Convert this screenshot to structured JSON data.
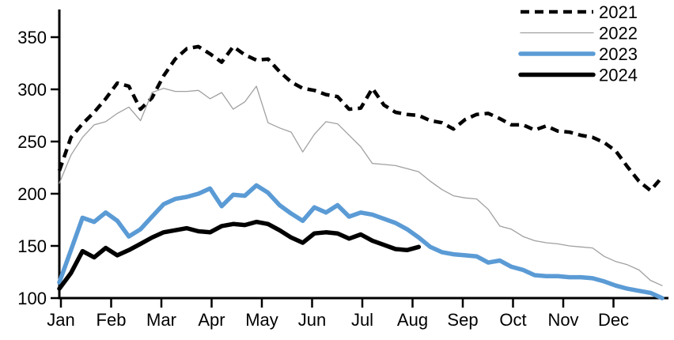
{
  "chart": {
    "legend": {
      "position": "top-right",
      "items": [
        {
          "label": "2021",
          "swatch": "dashed-black-line"
        },
        {
          "label": "2022",
          "swatch": "thin-gray-line"
        },
        {
          "label": "2023",
          "swatch": "thick-blue-line"
        },
        {
          "label": "2024",
          "swatch": "thick-black-line"
        }
      ]
    },
    "colors": {
      "series_2021": "#000000",
      "series_2022": "#a0a0a0",
      "series_2023": "#5b9bd5",
      "series_2024": "#000000",
      "axis": "#000000",
      "background": "#ffffff"
    }
  },
  "chart_data": {
    "type": "line",
    "title": "",
    "xlabel": "",
    "ylabel": "",
    "months": [
      "Jan",
      "Feb",
      "Mar",
      "Apr",
      "May",
      "Jun",
      "Jul",
      "Aug",
      "Sep",
      "Oct",
      "Nov",
      "Dec"
    ],
    "x_unit": "week",
    "weeks_per_year": 52,
    "ylim": [
      100,
      380
    ],
    "yticks": [
      100,
      150,
      200,
      250,
      300,
      350
    ],
    "grid": false,
    "legend_position": "top-right",
    "series": [
      {
        "name": "2021",
        "style": "dashed",
        "color": "#000000",
        "width": 4.5,
        "start_week": 0,
        "values": [
          222,
          254,
          267,
          278,
          291,
          306,
          303,
          281,
          292,
          313,
          329,
          339,
          341,
          334,
          326,
          341,
          333,
          328,
          329,
          317,
          307,
          301,
          299,
          295,
          293,
          281,
          282,
          301,
          285,
          278,
          276,
          275,
          270,
          268,
          262,
          271,
          276,
          277,
          272,
          266,
          266,
          261,
          265,
          260,
          259,
          256,
          254,
          249,
          241,
          226,
          212,
          203,
          216
        ]
      },
      {
        "name": "2022",
        "style": "solid",
        "color": "#a0a0a0",
        "width": 1.3,
        "start_week": 0,
        "values": [
          210,
          237,
          254,
          266,
          269,
          277,
          283,
          270,
          297,
          301,
          298,
          298,
          299,
          291,
          297,
          281,
          288,
          303,
          268,
          263,
          259,
          240,
          257,
          269,
          267,
          256,
          245,
          229,
          228,
          227,
          224,
          221,
          212,
          204,
          198,
          196,
          195,
          185,
          169,
          166,
          159,
          155,
          153,
          152,
          150,
          149,
          148,
          140,
          135,
          132,
          127,
          117,
          112
        ]
      },
      {
        "name": "2023",
        "style": "solid",
        "color": "#5b9bd5",
        "width": 5.5,
        "start_week": 0,
        "values": [
          115,
          146,
          177,
          173,
          182,
          174,
          159,
          166,
          178,
          190,
          195,
          197,
          200,
          205,
          188,
          199,
          198,
          208,
          201,
          189,
          181,
          174,
          187,
          182,
          189,
          178,
          182,
          180,
          176,
          172,
          166,
          158,
          149,
          144,
          142,
          141,
          140,
          134,
          136,
          130,
          127,
          122,
          121,
          121,
          120,
          120,
          119,
          116,
          112,
          109,
          107,
          105,
          100
        ]
      },
      {
        "name": "2024",
        "style": "solid",
        "color": "#000000",
        "width": 5.5,
        "start_week": 0,
        "values": [
          109,
          124,
          145,
          139,
          148,
          141,
          146,
          152,
          158,
          163,
          165,
          167,
          164,
          163,
          169,
          171,
          170,
          173,
          171,
          165,
          158,
          153,
          162,
          163,
          162,
          157,
          161,
          155,
          151,
          147,
          146,
          149
        ]
      }
    ]
  }
}
